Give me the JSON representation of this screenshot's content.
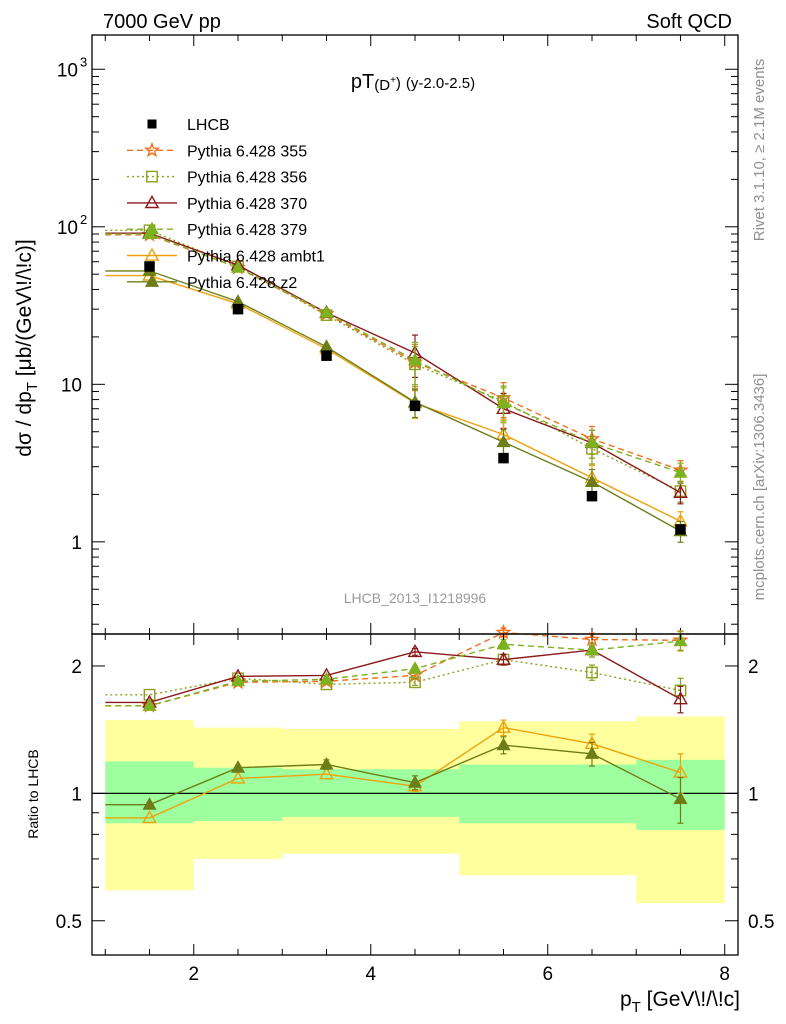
{
  "header": {
    "left": "7000 GeV pp",
    "right": "Soft QCD"
  },
  "side_labels": {
    "rivet": "Rivet 3.1.10, ≥ 2.1M events",
    "mcplots": "mcplots.cern.ch [arXiv:1306.3436]"
  },
  "chart_data": [
    {
      "type": "scatter",
      "panel": "main",
      "title": "pT(D⁺) (y-2.0-2.5)",
      "title_parts": {
        "main": "pT",
        "particle": "(D",
        "charge": "+",
        "close": ")",
        "range": "(y-2.0-2.5)"
      },
      "xlabel": {
        "main": "p",
        "sub": "T",
        "rest": " [GeV\\!/\\!c]"
      },
      "ylabel": {
        "a": "dσ / dp",
        "sub": "T",
        "b": " [μb/(GeV\\!/\\!c)]"
      },
      "y_log": true,
      "xlim": [
        0.85,
        8.15
      ],
      "ylim": [
        0.26,
        1650
      ],
      "y_ticks": [
        {
          "value": 1,
          "label": "1"
        },
        {
          "value": 10,
          "label": "10"
        },
        {
          "value": 100,
          "label": "10",
          "exp": "2"
        },
        {
          "value": 1000,
          "label": "10",
          "exp": "3"
        }
      ],
      "watermark": "LHCB_2013_I1218996",
      "legend_position": "top-left",
      "data": {
        "name": "LHCB",
        "points": [
          {
            "x": 1.5,
            "y": 56
          },
          {
            "x": 2.5,
            "y": 30
          },
          {
            "x": 3.5,
            "y": 15.2
          },
          {
            "x": 4.5,
            "y": 7.3
          },
          {
            "x": 5.5,
            "y": 3.4
          },
          {
            "x": 6.5,
            "y": 1.95
          },
          {
            "x": 7.5,
            "y": 1.2
          }
        ]
      },
      "series": [
        {
          "name": "Pythia 6.428 355",
          "color": "#f36f1c",
          "dash": "6,4",
          "marker": "star",
          "x": [
            1.5,
            2.5,
            3.5,
            4.5,
            5.5,
            6.5,
            7.5
          ],
          "y": [
            89,
            55,
            28,
            13.8,
            8.2,
            4.5,
            2.85
          ],
          "err": [
            0,
            0,
            0,
            0.3,
            0.25,
            0.2,
            0.15
          ]
        },
        {
          "name": "Pythia 6.428 356",
          "color": "#8ca01e",
          "dash": "2,3",
          "marker": "square-open",
          "x": [
            1.5,
            2.5,
            3.5,
            4.5,
            5.5,
            6.5,
            7.5
          ],
          "y": [
            95,
            56,
            27.5,
            13.4,
            7.8,
            3.9,
            2.1
          ],
          "err": [
            0,
            0,
            0,
            0.3,
            0.25,
            0.2,
            0.15
          ]
        },
        {
          "name": "Pythia 6.428 370",
          "color": "#8b1a1a",
          "dash": "",
          "marker": "triangle-open",
          "x": [
            1.5,
            2.5,
            3.5,
            4.5,
            5.5,
            6.5,
            7.5
          ],
          "y": [
            91,
            57,
            28.5,
            15.8,
            7.0,
            4.25,
            2.05
          ],
          "err": [
            0,
            0,
            0,
            0.3,
            0.25,
            0.2,
            0.15
          ]
        },
        {
          "name": "Pythia 6.428 379",
          "color": "#7cb21f",
          "dash": "6,4",
          "marker": "triangle-filled",
          "x": [
            1.5,
            2.5,
            3.5,
            4.5,
            5.5,
            6.5,
            7.5
          ],
          "y": [
            90,
            55,
            28.5,
            14.2,
            7.6,
            4.25,
            2.75
          ],
          "err": [
            0,
            0,
            0,
            0.3,
            0.25,
            0.2,
            0.15
          ]
        },
        {
          "name": "Pythia 6.428 ambt1",
          "color": "#eea10a",
          "dash": "",
          "marker": "triangle-open",
          "x": [
            1.5,
            2.5,
            3.5,
            4.5,
            5.5,
            6.5,
            7.5
          ],
          "y": [
            49,
            32.5,
            16.8,
            7.6,
            4.8,
            2.55,
            1.35
          ],
          "err": [
            0,
            0,
            0,
            0.2,
            0.25,
            0.2,
            0.15
          ]
        },
        {
          "name": "Pythia 6.428 z2",
          "color": "#6d7d17",
          "dash": "",
          "marker": "triangle-filled",
          "x": [
            1.5,
            2.5,
            3.5,
            4.5,
            5.5,
            6.5,
            7.5
          ],
          "y": [
            52.5,
            33.5,
            17.3,
            7.7,
            4.3,
            2.4,
            1.17
          ],
          "err": [
            0,
            0,
            0,
            0.2,
            0.2,
            0.2,
            0.15
          ]
        }
      ]
    },
    {
      "type": "line",
      "panel": "ratio",
      "ylabel": "Ratio to LHCB",
      "y_log": true,
      "xlim": [
        0.85,
        8.15
      ],
      "ylim": [
        0.415,
        2.38
      ],
      "x_ticks": [
        {
          "value": 2,
          "label": "2"
        },
        {
          "value": 4,
          "label": "4"
        },
        {
          "value": 6,
          "label": "6"
        },
        {
          "value": 8,
          "label": "8"
        }
      ],
      "y_ticks": [
        {
          "value": 0.5,
          "label": "0.5"
        },
        {
          "value": 1,
          "label": "1"
        },
        {
          "value": 2,
          "label": "2"
        }
      ],
      "bands": [
        {
          "x0": 1,
          "x1": 2,
          "stat": [
            0.85,
            1.19
          ],
          "total": [
            0.59,
            1.49
          ]
        },
        {
          "x0": 2,
          "x1": 3,
          "stat": [
            0.86,
            1.15
          ],
          "total": [
            0.7,
            1.43
          ]
        },
        {
          "x0": 3,
          "x1": 5,
          "stat": [
            0.88,
            1.14
          ],
          "total": [
            0.72,
            1.42
          ]
        },
        {
          "x0": 5,
          "x1": 7,
          "stat": [
            0.85,
            1.17
          ],
          "total": [
            0.64,
            1.48
          ]
        },
        {
          "x0": 7,
          "x1": 8,
          "stat": [
            0.82,
            1.2
          ],
          "total": [
            0.55,
            1.52
          ]
        }
      ],
      "series": [
        {
          "name": "Pythia 6.428 355",
          "y": [
            1.61,
            1.83,
            1.84,
            1.9,
            2.4,
            2.31,
            2.3
          ],
          "err": [
            0,
            0,
            0,
            0.03,
            0.06,
            0.08,
            0.12
          ]
        },
        {
          "name": "Pythia 6.428 356",
          "y": [
            1.71,
            1.87,
            1.81,
            1.83,
            2.07,
            1.93,
            1.75
          ],
          "err": [
            0,
            0,
            0,
            0.03,
            0.06,
            0.08,
            0.12
          ]
        },
        {
          "name": "Pythia 6.428 370",
          "y": [
            1.64,
            1.89,
            1.9,
            2.16,
            2.07,
            2.18,
            1.67
          ],
          "err": [
            0,
            0,
            0,
            0.04,
            0.06,
            0.08,
            0.12
          ]
        },
        {
          "name": "Pythia 6.428 379",
          "y": [
            1.61,
            1.84,
            1.86,
            1.97,
            2.25,
            2.18,
            2.29
          ],
          "err": [
            0,
            0,
            0,
            0.03,
            0.06,
            0.08,
            0.12
          ]
        },
        {
          "name": "Pythia 6.428 ambt1",
          "y": [
            0.875,
            1.085,
            1.11,
            1.04,
            1.43,
            1.31,
            1.12
          ],
          "err": [
            0,
            0,
            0,
            0.03,
            0.06,
            0.07,
            0.12
          ]
        },
        {
          "name": "Pythia 6.428 z2",
          "y": [
            0.94,
            1.15,
            1.17,
            1.06,
            1.3,
            1.24,
            0.97
          ],
          "err": [
            0,
            0,
            0.03,
            0.04,
            0.06,
            0.08,
            0.12
          ]
        }
      ]
    }
  ]
}
